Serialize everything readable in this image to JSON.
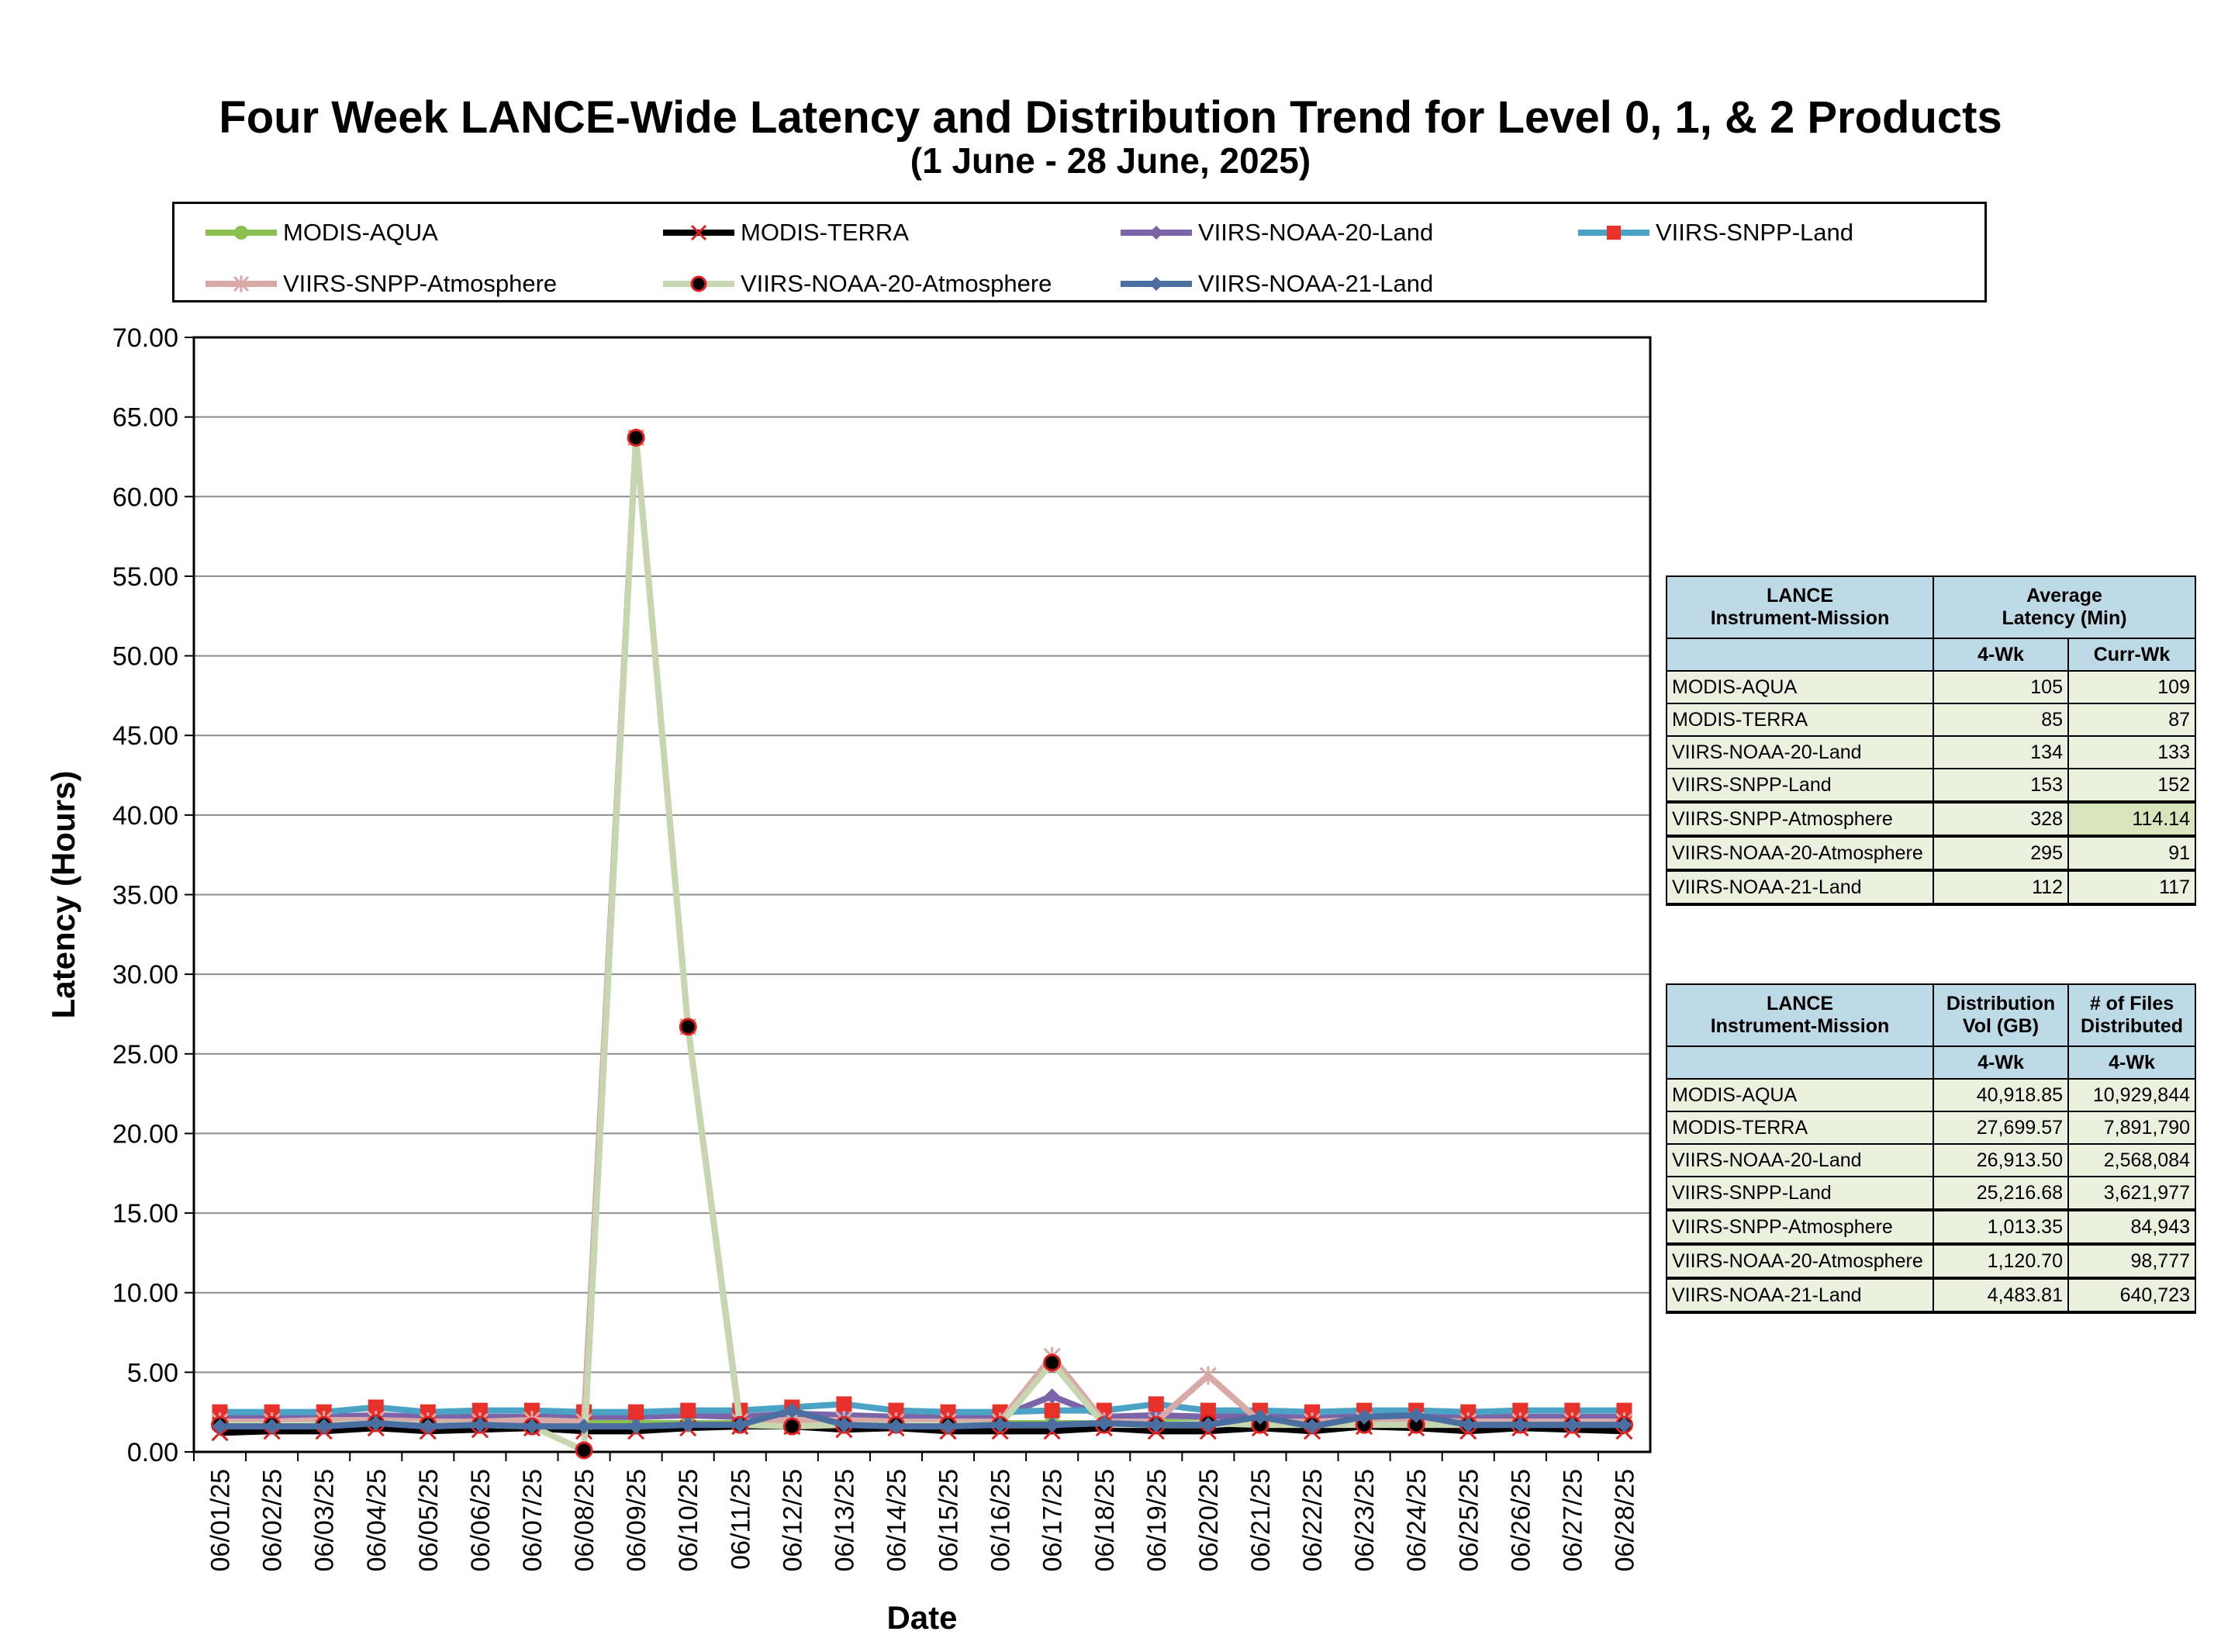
{
  "chart_data": {
    "type": "line",
    "title": "Four Week LANCE-Wide Latency and Distribution Trend for Level 0, 1, & 2 Products",
    "subtitle": "(1  June   -  28  June,  2025)",
    "xlabel": "Date",
    "ylabel": "Latency (Hours)",
    "ylim": [
      0,
      70
    ],
    "yticks": [
      "0.00",
      "5.00",
      "10.00",
      "15.00",
      "20.00",
      "25.00",
      "30.00",
      "35.00",
      "40.00",
      "45.00",
      "50.00",
      "55.00",
      "60.00",
      "65.00",
      "70.00"
    ],
    "grid": true,
    "legend_position": "top",
    "categories": [
      "06/01/25",
      "06/02/25",
      "06/03/25",
      "06/04/25",
      "06/05/25",
      "06/06/25",
      "06/07/25",
      "06/08/25",
      "06/09/25",
      "06/10/25",
      "06/11/25",
      "06/12/25",
      "06/13/25",
      "06/14/25",
      "06/15/25",
      "06/16/25",
      "06/17/25",
      "06/18/25",
      "06/19/25",
      "06/20/25",
      "06/21/25",
      "06/22/25",
      "06/23/25",
      "06/24/25",
      "06/25/25",
      "06/26/25",
      "06/27/25",
      "06/28/25"
    ],
    "series": [
      {
        "name": "MODIS-AQUA",
        "color": "#8cc152",
        "marker": "circle",
        "values": [
          1.8,
          1.8,
          1.8,
          1.9,
          1.8,
          1.8,
          1.8,
          1.8,
          1.8,
          1.8,
          1.8,
          1.9,
          1.9,
          1.8,
          1.8,
          1.8,
          1.8,
          1.8,
          1.9,
          1.8,
          1.8,
          1.8,
          1.9,
          1.9,
          1.8,
          1.8,
          1.8,
          1.8
        ]
      },
      {
        "name": "MODIS-TERRA",
        "color": "#000000",
        "marker": "x",
        "values": [
          1.2,
          1.3,
          1.3,
          1.5,
          1.3,
          1.4,
          1.5,
          1.3,
          1.3,
          1.5,
          1.6,
          1.6,
          1.4,
          1.5,
          1.3,
          1.3,
          1.3,
          1.5,
          1.3,
          1.3,
          1.5,
          1.3,
          1.6,
          1.5,
          1.3,
          1.5,
          1.4,
          1.3
        ]
      },
      {
        "name": "VIIRS-NOAA-20-Land",
        "color": "#7b64a8",
        "marker": "diamond",
        "values": [
          2.2,
          2.2,
          2.2,
          2.3,
          2.2,
          2.2,
          2.2,
          2.2,
          2.2,
          2.3,
          2.2,
          2.4,
          2.3,
          2.2,
          2.2,
          2.2,
          3.5,
          2.2,
          2.3,
          2.2,
          2.3,
          2.2,
          2.3,
          2.3,
          2.2,
          2.2,
          2.2,
          2.2
        ]
      },
      {
        "name": "VIIRS-SNPP-Land",
        "color": "#4aa3c4",
        "marker": "square",
        "values": [
          2.5,
          2.5,
          2.5,
          2.8,
          2.5,
          2.6,
          2.6,
          2.5,
          2.5,
          2.6,
          2.6,
          2.8,
          3.0,
          2.6,
          2.5,
          2.5,
          2.6,
          2.6,
          3.0,
          2.6,
          2.6,
          2.5,
          2.6,
          2.6,
          2.5,
          2.6,
          2.6,
          2.6
        ]
      },
      {
        "name": "VIIRS-SNPP-Atmosphere",
        "color": "#d8a9a6",
        "marker": "star",
        "values": [
          1.9,
          1.9,
          2.0,
          2.0,
          1.9,
          1.9,
          2.0,
          1.9,
          63.7,
          26.7,
          1.9,
          2.0,
          2.0,
          1.9,
          1.9,
          1.9,
          6.0,
          1.9,
          1.9,
          4.8,
          1.9,
          1.9,
          2.0,
          2.0,
          1.9,
          1.9,
          1.9,
          1.9
        ]
      },
      {
        "name": "VIIRS-NOAA-20-Atmosphere",
        "color": "#c6d6b0",
        "marker": "dot",
        "values": [
          1.7,
          1.7,
          1.7,
          1.8,
          1.7,
          1.7,
          1.6,
          0.1,
          63.7,
          26.7,
          1.7,
          1.6,
          1.7,
          1.7,
          1.7,
          1.7,
          5.6,
          1.7,
          1.7,
          1.8,
          1.7,
          1.7,
          1.7,
          1.7,
          1.7,
          1.7,
          1.7,
          1.7
        ]
      },
      {
        "name": "VIIRS-NOAA-21-Land",
        "color": "#4a6ea0",
        "marker": "diamond",
        "values": [
          1.6,
          1.6,
          1.6,
          1.8,
          1.6,
          1.7,
          1.6,
          1.6,
          1.6,
          1.7,
          1.7,
          2.6,
          1.7,
          1.6,
          1.6,
          1.7,
          1.7,
          1.8,
          1.7,
          1.7,
          2.2,
          1.6,
          2.2,
          2.3,
          1.7,
          1.7,
          1.7,
          1.7
        ]
      }
    ]
  },
  "latency_table": {
    "header_col1": [
      "LANCE",
      "Instrument-Mission"
    ],
    "header_col2": [
      "Average",
      "Latency (Min)"
    ],
    "sub_col2": "4-Wk",
    "sub_col3": "Curr-Wk",
    "rows": [
      {
        "name": "MODIS-AQUA",
        "wk4": "105",
        "curr": "109"
      },
      {
        "name": "MODIS-TERRA",
        "wk4": "85",
        "curr": "87"
      },
      {
        "name": "VIIRS-NOAA-20-Land",
        "wk4": "134",
        "curr": "133"
      },
      {
        "name": "VIIRS-SNPP-Land",
        "wk4": "153",
        "curr": "152"
      },
      {
        "name": "VIIRS-SNPP-Atmosphere",
        "wk4": "328",
        "curr": "114.14"
      },
      {
        "name": "VIIRS-NOAA-20-Atmosphere",
        "wk4": "295",
        "curr": "91"
      },
      {
        "name": "VIIRS-NOAA-21-Land",
        "wk4": "112",
        "curr": "117"
      }
    ]
  },
  "distribution_table": {
    "header_col1": [
      "LANCE",
      "Instrument-Mission"
    ],
    "header_col2": [
      "Distribution",
      "Vol (GB)"
    ],
    "header_col3": [
      "# of Files",
      "Distributed"
    ],
    "sub_col2": "4-Wk",
    "sub_col3": "4-Wk",
    "rows": [
      {
        "name": "MODIS-AQUA",
        "vol": "40,918.85",
        "files": "10,929,844"
      },
      {
        "name": "MODIS-TERRA",
        "vol": "27,699.57",
        "files": "7,891,790"
      },
      {
        "name": "VIIRS-NOAA-20-Land",
        "vol": "26,913.50",
        "files": "2,568,084"
      },
      {
        "name": "VIIRS-SNPP-Land",
        "vol": "25,216.68",
        "files": "3,621,977"
      },
      {
        "name": "VIIRS-SNPP-Atmosphere",
        "vol": "1,013.35",
        "files": "84,943"
      },
      {
        "name": "VIIRS-NOAA-20-Atmosphere",
        "vol": "1,120.70",
        "files": "98,777"
      },
      {
        "name": "VIIRS-NOAA-21-Land",
        "vol": "4,483.81",
        "files": "640,723"
      }
    ]
  }
}
